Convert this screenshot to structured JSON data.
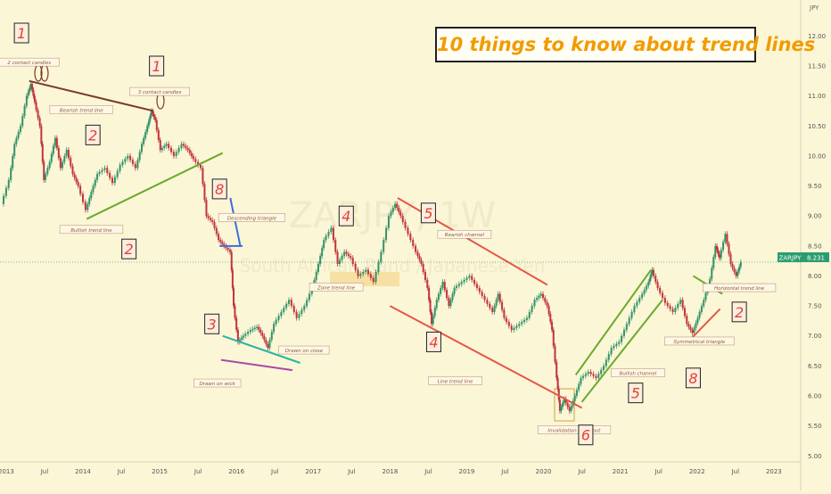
{
  "title": "10 things to know about trend lines",
  "watermark": "ZARJPY, 1W",
  "watermark_sub": "South African Rand / Japanese Yen",
  "currency": "JPY",
  "price_tag": {
    "symbol": "ZARJPY",
    "value": "8.231"
  },
  "colors": {
    "background": "#fbf6d6",
    "candle_up": "#2a9d6f",
    "candle_down": "#c8323c",
    "number_text": "#e0443a",
    "label_bg": "#fff7e6",
    "accent": "#f29b00"
  },
  "numbers": [
    {
      "text": "1",
      "date": 2013.2,
      "price": 12.05
    },
    {
      "text": "1",
      "date": 2014.96,
      "price": 11.5
    },
    {
      "text": "2",
      "date": 2014.13,
      "price": 10.35
    },
    {
      "text": "2",
      "date": 2014.6,
      "price": 8.45
    },
    {
      "text": "8",
      "date": 2015.78,
      "price": 9.45
    },
    {
      "text": "3",
      "date": 2015.68,
      "price": 7.2
    },
    {
      "text": "4",
      "date": 2017.43,
      "price": 9.0
    },
    {
      "text": "5",
      "date": 2018.5,
      "price": 9.05
    },
    {
      "text": "4",
      "date": 2018.57,
      "price": 6.9
    },
    {
      "text": "6",
      "date": 2020.55,
      "price": 5.35
    },
    {
      "text": "5",
      "date": 2021.2,
      "price": 6.05
    },
    {
      "text": "8",
      "date": 2021.95,
      "price": 6.3
    },
    {
      "text": "2",
      "date": 2022.55,
      "price": 7.4
    }
  ],
  "labels": [
    {
      "text": "2 contact candles",
      "date": 2013.3,
      "price": 11.55
    },
    {
      "text": "Bearish trend line",
      "date": 2013.98,
      "price": 10.76
    },
    {
      "text": "3 contact candles",
      "date": 2015.0,
      "price": 11.06
    },
    {
      "text": "Bullish trend line",
      "date": 2014.11,
      "price": 8.76
    },
    {
      "text": "Descending triangle",
      "date": 2016.2,
      "price": 8.96
    },
    {
      "text": "Zone trend line",
      "date": 2017.3,
      "price": 7.8
    },
    {
      "text": "Bearish channel",
      "date": 2018.97,
      "price": 8.68
    },
    {
      "text": "Drawn on close",
      "date": 2016.88,
      "price": 6.75
    },
    {
      "text": "Drawn on wick",
      "date": 2015.75,
      "price": 6.2
    },
    {
      "text": "Line trend line",
      "date": 2018.85,
      "price": 6.24
    },
    {
      "text": "Invalidation Breakout",
      "date": 2020.4,
      "price": 5.42
    },
    {
      "text": "Bullish channel",
      "date": 2021.23,
      "price": 6.37
    },
    {
      "text": "Symmetrical triangle",
      "date": 2022.03,
      "price": 6.9
    },
    {
      "text": "Horizontal trend line",
      "date": 2022.55,
      "price": 7.79
    }
  ],
  "chart_data": {
    "type": "line",
    "x_labels": [
      "2013",
      "Jul",
      "2014",
      "Jul",
      "2015",
      "Jul",
      "2016",
      "Jul",
      "2017",
      "Jul",
      "2018",
      "Jul",
      "2019",
      "Jul",
      "2020",
      "Jul",
      "2021",
      "Jul",
      "2022",
      "Jul",
      "2023"
    ],
    "x_ticks": [
      2013,
      2013.5,
      2014,
      2014.5,
      2015,
      2015.5,
      2016,
      2016.5,
      2017,
      2017.5,
      2018,
      2018.5,
      2019,
      2019.5,
      2020,
      2020.5,
      2021,
      2021.5,
      2022,
      2022.5,
      2023
    ],
    "y_ticks": [
      5.0,
      5.5,
      6.0,
      6.5,
      7.0,
      7.5,
      8.0,
      8.5,
      9.0,
      9.5,
      10.0,
      10.5,
      11.0,
      11.5,
      12.0
    ],
    "xlim": [
      2012.92,
      2023.35
    ],
    "ylim": [
      4.9,
      12.6
    ],
    "series": [
      {
        "values": [
          [
            2012.95,
            9.2
          ],
          [
            2013.05,
            9.6
          ],
          [
            2013.12,
            10.2
          ],
          [
            2013.2,
            10.5
          ],
          [
            2013.28,
            11.0
          ],
          [
            2013.33,
            11.2
          ],
          [
            2013.38,
            10.9
          ],
          [
            2013.45,
            10.5
          ],
          [
            2013.5,
            9.6
          ],
          [
            2013.58,
            9.9
          ],
          [
            2013.65,
            10.3
          ],
          [
            2013.72,
            9.8
          ],
          [
            2013.8,
            10.1
          ],
          [
            2013.88,
            9.7
          ],
          [
            2013.95,
            9.5
          ],
          [
            2014.05,
            9.1
          ],
          [
            2014.12,
            9.4
          ],
          [
            2014.2,
            9.7
          ],
          [
            2014.3,
            9.8
          ],
          [
            2014.4,
            9.55
          ],
          [
            2014.5,
            9.85
          ],
          [
            2014.6,
            10.0
          ],
          [
            2014.7,
            9.8
          ],
          [
            2014.78,
            10.2
          ],
          [
            2014.85,
            10.5
          ],
          [
            2014.9,
            10.75
          ],
          [
            2014.95,
            10.6
          ],
          [
            2015.02,
            10.1
          ],
          [
            2015.1,
            10.2
          ],
          [
            2015.2,
            10.0
          ],
          [
            2015.3,
            10.2
          ],
          [
            2015.38,
            10.1
          ],
          [
            2015.45,
            9.95
          ],
          [
            2015.55,
            9.8
          ],
          [
            2015.62,
            9.0
          ],
          [
            2015.7,
            8.9
          ],
          [
            2015.78,
            8.6
          ],
          [
            2015.85,
            8.5
          ],
          [
            2015.93,
            8.4
          ],
          [
            2015.97,
            7.5
          ],
          [
            2016.03,
            6.9
          ],
          [
            2016.1,
            7.0
          ],
          [
            2016.2,
            7.1
          ],
          [
            2016.28,
            7.15
          ],
          [
            2016.35,
            7.0
          ],
          [
            2016.42,
            6.8
          ],
          [
            2016.5,
            7.2
          ],
          [
            2016.6,
            7.4
          ],
          [
            2016.7,
            7.6
          ],
          [
            2016.8,
            7.3
          ],
          [
            2016.9,
            7.5
          ],
          [
            2017.0,
            7.8
          ],
          [
            2017.08,
            8.2
          ],
          [
            2017.15,
            8.6
          ],
          [
            2017.25,
            8.8
          ],
          [
            2017.33,
            8.2
          ],
          [
            2017.42,
            8.4
          ],
          [
            2017.5,
            8.3
          ],
          [
            2017.6,
            8.0
          ],
          [
            2017.7,
            8.1
          ],
          [
            2017.8,
            7.9
          ],
          [
            2017.9,
            8.4
          ],
          [
            2018.0,
            9.0
          ],
          [
            2018.08,
            9.2
          ],
          [
            2018.15,
            9.0
          ],
          [
            2018.25,
            8.7
          ],
          [
            2018.35,
            8.4
          ],
          [
            2018.42,
            8.2
          ],
          [
            2018.5,
            7.8
          ],
          [
            2018.55,
            7.2
          ],
          [
            2018.62,
            7.6
          ],
          [
            2018.7,
            7.9
          ],
          [
            2018.78,
            7.5
          ],
          [
            2018.85,
            7.8
          ],
          [
            2018.95,
            7.9
          ],
          [
            2019.05,
            8.0
          ],
          [
            2019.15,
            7.8
          ],
          [
            2019.25,
            7.6
          ],
          [
            2019.35,
            7.4
          ],
          [
            2019.42,
            7.7
          ],
          [
            2019.5,
            7.3
          ],
          [
            2019.6,
            7.1
          ],
          [
            2019.7,
            7.2
          ],
          [
            2019.8,
            7.3
          ],
          [
            2019.9,
            7.6
          ],
          [
            2019.98,
            7.7
          ],
          [
            2020.06,
            7.5
          ],
          [
            2020.12,
            7.1
          ],
          [
            2020.18,
            6.3
          ],
          [
            2020.22,
            5.75
          ],
          [
            2020.28,
            5.95
          ],
          [
            2020.35,
            5.75
          ],
          [
            2020.42,
            6.0
          ],
          [
            2020.5,
            6.3
          ],
          [
            2020.6,
            6.4
          ],
          [
            2020.7,
            6.3
          ],
          [
            2020.8,
            6.5
          ],
          [
            2020.9,
            6.8
          ],
          [
            2021.0,
            6.9
          ],
          [
            2021.1,
            7.2
          ],
          [
            2021.2,
            7.5
          ],
          [
            2021.3,
            7.7
          ],
          [
            2021.38,
            7.9
          ],
          [
            2021.42,
            8.1
          ],
          [
            2021.5,
            7.8
          ],
          [
            2021.6,
            7.55
          ],
          [
            2021.7,
            7.4
          ],
          [
            2021.8,
            7.6
          ],
          [
            2021.88,
            7.2
          ],
          [
            2021.95,
            7.05
          ],
          [
            2022.02,
            7.3
          ],
          [
            2022.1,
            7.6
          ],
          [
            2022.18,
            7.95
          ],
          [
            2022.25,
            8.5
          ],
          [
            2022.3,
            8.3
          ],
          [
            2022.38,
            8.7
          ],
          [
            2022.45,
            8.2
          ],
          [
            2022.52,
            8.0
          ],
          [
            2022.58,
            8.23
          ]
        ]
      }
    ],
    "trend_lines": [
      {
        "color": "#7a3b25",
        "pts": [
          [
            2013.3,
            11.25
          ],
          [
            2014.92,
            10.75
          ]
        ]
      },
      {
        "color": "#6aaa2e",
        "pts": [
          [
            2014.05,
            8.95
          ],
          [
            2015.82,
            10.05
          ]
        ]
      },
      {
        "color": "#3b6fd8",
        "pts": [
          [
            2015.92,
            9.3
          ],
          [
            2016.05,
            8.5
          ]
        ]
      },
      {
        "color": "#3b6fd8",
        "pts": [
          [
            2015.78,
            8.5
          ],
          [
            2016.08,
            8.5
          ]
        ]
      },
      {
        "color": "#2ab3a3",
        "pts": [
          [
            2015.82,
            7.0
          ],
          [
            2016.83,
            6.55
          ]
        ]
      },
      {
        "color": "#a64aa8",
        "pts": [
          [
            2015.8,
            6.6
          ],
          [
            2016.73,
            6.43
          ]
        ]
      },
      {
        "color": "#e5564a",
        "pts": [
          [
            2018.1,
            9.3
          ],
          [
            2020.05,
            7.85
          ]
        ]
      },
      {
        "color": "#e5564a",
        "pts": [
          [
            2018.0,
            7.5
          ],
          [
            2020.5,
            5.8
          ]
        ]
      },
      {
        "color": "#6aaa2e",
        "pts": [
          [
            2020.42,
            6.35
          ],
          [
            2021.4,
            8.1
          ]
        ]
      },
      {
        "color": "#6aaa2e",
        "pts": [
          [
            2020.5,
            5.9
          ],
          [
            2021.55,
            7.6
          ]
        ]
      },
      {
        "color": "#6aaa2e",
        "pts": [
          [
            2021.95,
            8.0
          ],
          [
            2022.33,
            7.7
          ]
        ]
      },
      {
        "color": "#e5564a",
        "pts": [
          [
            2021.92,
            6.95
          ],
          [
            2022.3,
            7.45
          ]
        ]
      },
      {
        "color": "#e08aa0",
        "pts": [
          [
            2022.48,
            7.86
          ],
          [
            2022.92,
            7.86
          ]
        ]
      }
    ]
  }
}
